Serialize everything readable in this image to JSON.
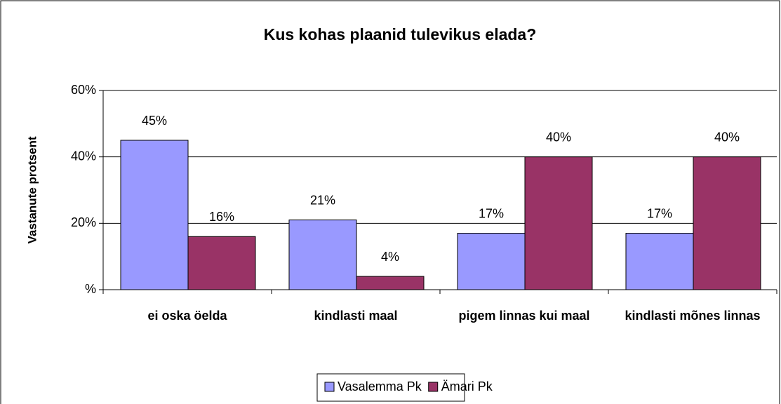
{
  "chart_data": {
    "type": "bar",
    "title": "Kus kohas plaanid tulevikus elada?",
    "y_label": "Vastanute protsent",
    "categories": [
      "ei oska öelda",
      "kindlasti maal",
      "pigem linnas kui maal",
      "kindlasti mõnes linnas"
    ],
    "series": [
      {
        "name": "Vasalemma Pk",
        "color": "#9999ff",
        "values": [
          45,
          21,
          17,
          17
        ],
        "value_labels": [
          "45%",
          "21%",
          "17%",
          "17%"
        ]
      },
      {
        "name": "Ämari Pk",
        "color": "#993366",
        "values": [
          16,
          4,
          40,
          40
        ],
        "value_labels": [
          "16%",
          "4%",
          "40%",
          "40%"
        ]
      }
    ],
    "ylim": [
      0,
      60
    ],
    "yticks": [
      {
        "value": 0,
        "label": "%"
      },
      {
        "value": 20,
        "label": "20%"
      },
      {
        "value": 40,
        "label": "40%"
      },
      {
        "value": 60,
        "label": "60%"
      }
    ],
    "grid": true,
    "legend": "bottom"
  }
}
